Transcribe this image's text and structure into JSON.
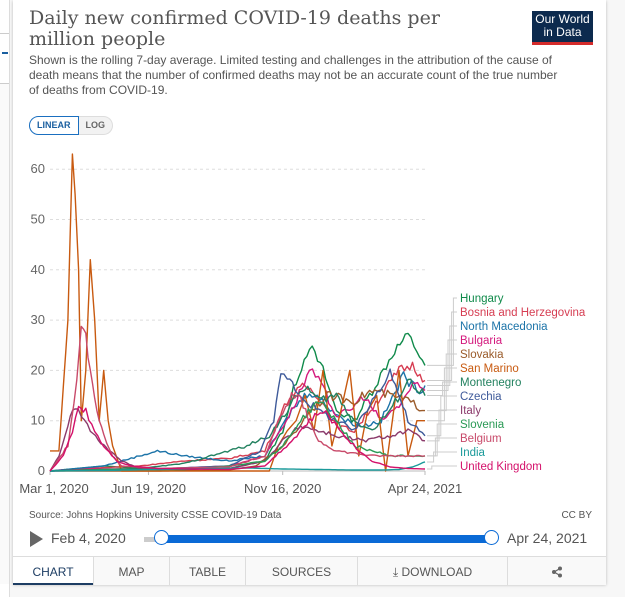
{
  "header": {
    "title": "Daily new confirmed COVID-19 deaths per million people",
    "subtitle": "Shown is the rolling 7-day average. Limited testing and challenges in the attribution of the cause of death means that the number of confirmed deaths may not be an accurate count of the true number of deaths from COVID-19.",
    "logo_line1": "Our World",
    "logo_line2": "in Data"
  },
  "scale_toggle": {
    "linear": "LINEAR",
    "log": "LOG",
    "selected": "LINEAR"
  },
  "footer": {
    "source": "Source: Johns Hopkins University CSSE COVID-19 Data",
    "license": "CC BY"
  },
  "timeline": {
    "start_label": "Feb 4, 2020",
    "end_label": "Apr 24, 2021",
    "start_fraction": 0.0,
    "end_fraction": 1.0
  },
  "tabs": [
    {
      "label": "CHART",
      "active": true
    },
    {
      "label": "MAP"
    },
    {
      "label": "TABLE"
    },
    {
      "label": "SOURCES"
    },
    {
      "label": "DOWNLOAD",
      "icon": "download-icon"
    },
    {
      "label": "",
      "icon": "share-icon"
    }
  ],
  "chart_data": {
    "type": "line",
    "title": "Daily new confirmed COVID-19 deaths per million people",
    "xlabel": "",
    "ylabel": "",
    "x_start": "2020-03-01",
    "x_end": "2021-04-24",
    "x_ticks": [
      {
        "label": "Mar 1, 2020",
        "day": 0
      },
      {
        "label": "Jun 19, 2020",
        "day": 110
      },
      {
        "label": "Nov 16, 2020",
        "day": 260
      },
      {
        "label": "Apr 24, 2021",
        "day": 419
      }
    ],
    "y_ticks": [
      0,
      10,
      20,
      30,
      40,
      50,
      60
    ],
    "ylim": [
      0,
      63
    ],
    "grid": true,
    "legend": "right",
    "note": "Approximate key points (day since Mar 1 2020, value) traced from the chart",
    "series": [
      {
        "name": "Hungary",
        "color": "#0f8a4a",
        "points": [
          [
            0,
            0
          ],
          [
            60,
            1
          ],
          [
            120,
            0.3
          ],
          [
            200,
            0.5
          ],
          [
            240,
            2
          ],
          [
            260,
            8
          ],
          [
            275,
            18
          ],
          [
            290,
            25
          ],
          [
            305,
            20
          ],
          [
            320,
            12
          ],
          [
            340,
            10
          ],
          [
            360,
            16
          ],
          [
            385,
            24
          ],
          [
            400,
            27
          ],
          [
            410,
            24
          ],
          [
            419,
            21
          ]
        ]
      },
      {
        "name": "Bosnia and Herzegovina",
        "color": "#d63d52",
        "points": [
          [
            0,
            0
          ],
          [
            40,
            0.5
          ],
          [
            100,
            1
          ],
          [
            150,
            2
          ],
          [
            200,
            2.5
          ],
          [
            240,
            4
          ],
          [
            265,
            14
          ],
          [
            285,
            17
          ],
          [
            300,
            15
          ],
          [
            320,
            9
          ],
          [
            340,
            8
          ],
          [
            370,
            15
          ],
          [
            390,
            20
          ],
          [
            405,
            21
          ],
          [
            419,
            18
          ]
        ]
      },
      {
        "name": "North Macedonia",
        "color": "#1b73a8",
        "points": [
          [
            0,
            0
          ],
          [
            60,
            1
          ],
          [
            100,
            3
          ],
          [
            120,
            4
          ],
          [
            150,
            3
          ],
          [
            200,
            2
          ],
          [
            240,
            3
          ],
          [
            270,
            12
          ],
          [
            290,
            16
          ],
          [
            310,
            13
          ],
          [
            330,
            10
          ],
          [
            350,
            9
          ],
          [
            370,
            10
          ],
          [
            395,
            19
          ],
          [
            410,
            16
          ],
          [
            419,
            17
          ]
        ]
      },
      {
        "name": "Bulgaria",
        "color": "#d4197d",
        "points": [
          [
            0,
            0
          ],
          [
            50,
            0.4
          ],
          [
            120,
            0.4
          ],
          [
            200,
            1
          ],
          [
            240,
            3
          ],
          [
            270,
            12
          ],
          [
            290,
            20
          ],
          [
            300,
            18
          ],
          [
            320,
            11
          ],
          [
            335,
            12
          ],
          [
            350,
            15
          ],
          [
            370,
            10
          ],
          [
            390,
            13
          ],
          [
            405,
            17
          ],
          [
            419,
            16
          ]
        ]
      },
      {
        "name": "Slovakia",
        "color": "#9a5b2a",
        "points": [
          [
            0,
            0
          ],
          [
            120,
            0
          ],
          [
            200,
            0.2
          ],
          [
            230,
            1
          ],
          [
            260,
            5
          ],
          [
            275,
            8
          ],
          [
            290,
            12
          ],
          [
            310,
            15
          ],
          [
            340,
            14
          ],
          [
            360,
            16
          ],
          [
            380,
            15
          ],
          [
            400,
            14
          ],
          [
            419,
            12
          ]
        ]
      },
      {
        "name": "San Marino",
        "color": "#c85a10",
        "points": [
          [
            0,
            4
          ],
          [
            10,
            4
          ],
          [
            15,
            17
          ],
          [
            20,
            30
          ],
          [
            25,
            63
          ],
          [
            28,
            55
          ],
          [
            32,
            40
          ],
          [
            35,
            10
          ],
          [
            40,
            20
          ],
          [
            45,
            42
          ],
          [
            50,
            30
          ],
          [
            55,
            10
          ],
          [
            60,
            20
          ],
          [
            65,
            10
          ],
          [
            70,
            5
          ],
          [
            80,
            0
          ],
          [
            100,
            0
          ],
          [
            200,
            0
          ],
          [
            245,
            0
          ],
          [
            255,
            5
          ],
          [
            265,
            8
          ],
          [
            275,
            10
          ],
          [
            285,
            15
          ],
          [
            295,
            8
          ],
          [
            305,
            20
          ],
          [
            315,
            5
          ],
          [
            325,
            12
          ],
          [
            335,
            20
          ],
          [
            345,
            3
          ],
          [
            355,
            12
          ],
          [
            365,
            15
          ],
          [
            375,
            0
          ],
          [
            390,
            20
          ],
          [
            400,
            3
          ],
          [
            410,
            10
          ],
          [
            419,
            10
          ]
        ]
      },
      {
        "name": "Montenegro",
        "color": "#22815f",
        "points": [
          [
            0,
            0
          ],
          [
            100,
            0.5
          ],
          [
            150,
            1.5
          ],
          [
            180,
            3
          ],
          [
            220,
            5
          ],
          [
            245,
            7
          ],
          [
            265,
            12
          ],
          [
            285,
            17
          ],
          [
            300,
            14
          ],
          [
            320,
            15
          ],
          [
            340,
            10
          ],
          [
            360,
            8
          ],
          [
            380,
            12
          ],
          [
            400,
            18
          ],
          [
            419,
            15
          ]
        ]
      },
      {
        "name": "Czechia",
        "color": "#3e5a9a",
        "points": [
          [
            0,
            0
          ],
          [
            100,
            0.3
          ],
          [
            200,
            1
          ],
          [
            235,
            4
          ],
          [
            250,
            10
          ],
          [
            258,
            19
          ],
          [
            265,
            19
          ],
          [
            280,
            15
          ],
          [
            300,
            12
          ],
          [
            320,
            10
          ],
          [
            340,
            8
          ],
          [
            360,
            14
          ],
          [
            380,
            20
          ],
          [
            400,
            10
          ],
          [
            419,
            7
          ]
        ]
      },
      {
        "name": "Italy",
        "color": "#8b3a6b",
        "points": [
          [
            0,
            0
          ],
          [
            10,
            3
          ],
          [
            20,
            9
          ],
          [
            28,
            13
          ],
          [
            35,
            11
          ],
          [
            45,
            8
          ],
          [
            60,
            5
          ],
          [
            80,
            2
          ],
          [
            100,
            0.5
          ],
          [
            150,
            0.3
          ],
          [
            200,
            0.5
          ],
          [
            240,
            2
          ],
          [
            260,
            6
          ],
          [
            280,
            9
          ],
          [
            300,
            8
          ],
          [
            320,
            7
          ],
          [
            350,
            6
          ],
          [
            380,
            7
          ],
          [
            400,
            8
          ],
          [
            419,
            6
          ]
        ]
      },
      {
        "name": "Slovenia",
        "color": "#2a9a55",
        "points": [
          [
            0,
            0
          ],
          [
            60,
            0.3
          ],
          [
            150,
            0.3
          ],
          [
            200,
            1
          ],
          [
            240,
            2
          ],
          [
            260,
            5
          ],
          [
            280,
            10
          ],
          [
            300,
            14
          ],
          [
            320,
            10
          ],
          [
            340,
            5
          ],
          [
            360,
            4
          ],
          [
            380,
            3
          ],
          [
            400,
            3
          ],
          [
            419,
            3
          ]
        ]
      },
      {
        "name": "Belgium",
        "color": "#c84a6a",
        "points": [
          [
            0,
            0
          ],
          [
            20,
            5
          ],
          [
            30,
            18
          ],
          [
            35,
            28
          ],
          [
            40,
            27
          ],
          [
            45,
            20
          ],
          [
            50,
            15
          ],
          [
            55,
            10
          ],
          [
            60,
            7
          ],
          [
            70,
            3
          ],
          [
            80,
            1
          ],
          [
            120,
            0.5
          ],
          [
            200,
            0.8
          ],
          [
            240,
            3
          ],
          [
            260,
            12
          ],
          [
            270,
            15
          ],
          [
            280,
            14
          ],
          [
            300,
            6
          ],
          [
            320,
            4
          ],
          [
            360,
            3
          ],
          [
            380,
            3
          ],
          [
            400,
            3
          ],
          [
            419,
            3
          ]
        ]
      },
      {
        "name": "India",
        "color": "#1a9a9a",
        "points": [
          [
            0,
            0
          ],
          [
            60,
            0.1
          ],
          [
            120,
            0.3
          ],
          [
            180,
            0.5
          ],
          [
            220,
            0.6
          ],
          [
            260,
            0.4
          ],
          [
            300,
            0.3
          ],
          [
            340,
            0.2
          ],
          [
            370,
            0.2
          ],
          [
            390,
            0.3
          ],
          [
            405,
            0.8
          ],
          [
            419,
            1.8
          ]
        ]
      },
      {
        "name": "United Kingdom",
        "color": "#d4106a",
        "points": [
          [
            0,
            0
          ],
          [
            15,
            3
          ],
          [
            25,
            8
          ],
          [
            32,
            13
          ],
          [
            40,
            12
          ],
          [
            50,
            8
          ],
          [
            60,
            5
          ],
          [
            75,
            2
          ],
          [
            90,
            1
          ],
          [
            120,
            0.5
          ],
          [
            200,
            0.3
          ],
          [
            240,
            1
          ],
          [
            270,
            6
          ],
          [
            290,
            10
          ],
          [
            305,
            12
          ],
          [
            315,
            10
          ],
          [
            330,
            7
          ],
          [
            345,
            4
          ],
          [
            360,
            2
          ],
          [
            380,
            0.8
          ],
          [
            400,
            0.5
          ],
          [
            419,
            0.4
          ]
        ]
      }
    ]
  }
}
